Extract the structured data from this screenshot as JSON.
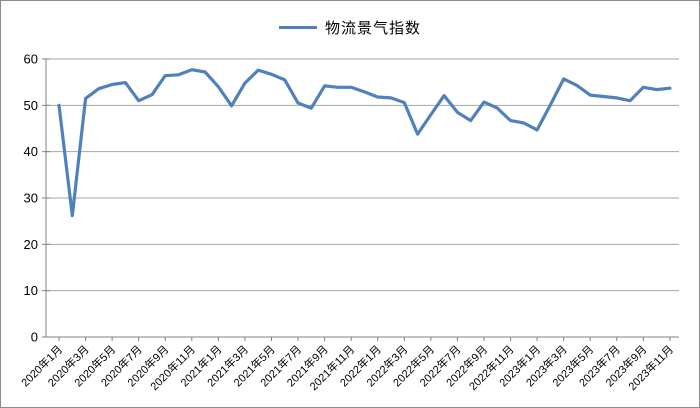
{
  "window": {
    "background": "#ffffff",
    "border_color": "#8c8c8c"
  },
  "legend": {
    "label": "物流景气指数",
    "marker_color": "#4F81BD",
    "position": "top-center"
  },
  "chart_data": {
    "type": "line",
    "title": "物流景气指数",
    "xlabel": "",
    "ylabel": "",
    "ylim": [
      0,
      60
    ],
    "y_tick_step": 10,
    "x_tick_step": 2,
    "grid": true,
    "legend_position": "top-center",
    "colors": {
      "line": "#4F81BD",
      "grid": "#a6a6a6",
      "axis": "#808080",
      "text": "#000000"
    },
    "categories": [
      "2020年1月",
      "2020年2月",
      "2020年3月",
      "2020年4月",
      "2020年5月",
      "2020年6月",
      "2020年7月",
      "2020年8月",
      "2020年9月",
      "2020年10月",
      "2020年11月",
      "2020年12月",
      "2021年1月",
      "2021年2月",
      "2021年3月",
      "2021年4月",
      "2021年5月",
      "2021年6月",
      "2021年7月",
      "2021年8月",
      "2021年9月",
      "2021年10月",
      "2021年11月",
      "2021年12月",
      "2022年1月",
      "2022年2月",
      "2022年3月",
      "2022年4月",
      "2022年5月",
      "2022年6月",
      "2022年7月",
      "2022年8月",
      "2022年9月",
      "2022年10月",
      "2022年11月",
      "2022年12月",
      "2023年1月",
      "2023年2月",
      "2023年3月",
      "2023年4月",
      "2023年5月",
      "2023年6月",
      "2023年7月",
      "2023年8月",
      "2023年9月",
      "2023年10月",
      "2023年11月"
    ],
    "x_axis_shown_labels": [
      "2020年1月",
      "2020年3月",
      "2020年5月",
      "2020年7月",
      "2020年9月",
      "2020年11月",
      "2021年1月",
      "2021年3月",
      "2021年5月",
      "2021年7月",
      "2021年9月",
      "2021年11月",
      "2022年1月",
      "2022年3月",
      "2022年5月",
      "2022年7月",
      "2022年9月",
      "2022年11月",
      "2023年1月",
      "2023年3月",
      "2023年5月",
      "2023年7月",
      "2023年9月",
      "2023年11月"
    ],
    "y_tick_labels": [
      "0",
      "10",
      "20",
      "30",
      "40",
      "50",
      "60"
    ],
    "series": [
      {
        "name": "物流景气指数",
        "color": "#4F81BD",
        "values": [
          50.0,
          26.2,
          51.5,
          53.6,
          54.5,
          54.9,
          51.0,
          52.3,
          56.4,
          56.6,
          57.7,
          57.2,
          54.0,
          49.9,
          54.8,
          57.6,
          56.7,
          55.5,
          50.5,
          49.4,
          54.2,
          53.9,
          53.9,
          52.9,
          51.8,
          51.6,
          50.6,
          43.8,
          48.0,
          52.1,
          48.5,
          46.7,
          50.7,
          49.4,
          46.7,
          46.2,
          44.7,
          50.1,
          55.7,
          54.3,
          52.2,
          51.9,
          51.6,
          51.0,
          53.9,
          53.4,
          53.7
        ]
      }
    ]
  }
}
